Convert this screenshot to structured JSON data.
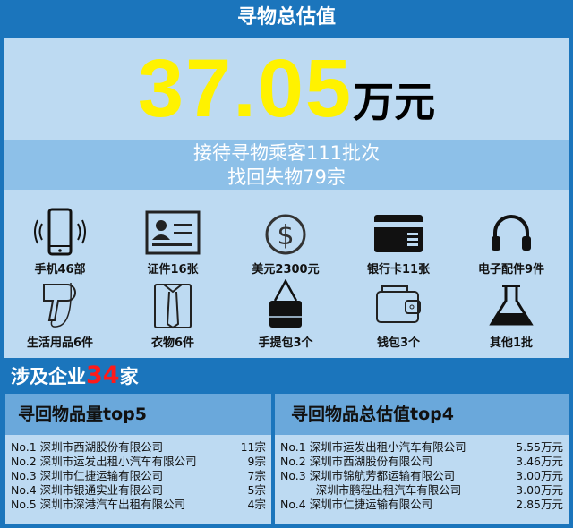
{
  "header": {
    "title": "寻物总估值"
  },
  "total": {
    "value": "37.05",
    "unit": "万元"
  },
  "summary": {
    "line1": "接待寻物乘客111批次",
    "line2": "找回失物79宗"
  },
  "items": [
    {
      "icon": "phone-icon",
      "label": "手机46部"
    },
    {
      "icon": "id-card-icon",
      "label": "证件16张"
    },
    {
      "icon": "dollar-icon",
      "label": "美元2300元"
    },
    {
      "icon": "bank-card-icon",
      "label": "银行卡11张"
    },
    {
      "icon": "headphones-icon",
      "label": "电子配件9件"
    },
    {
      "icon": "hair-dryer-icon",
      "label": "生活用品6件"
    },
    {
      "icon": "shirt-icon",
      "label": "衣物6件"
    },
    {
      "icon": "handbag-icon",
      "label": "手提包3个"
    },
    {
      "icon": "wallet-icon",
      "label": "钱包3个"
    },
    {
      "icon": "flask-icon",
      "label": "其他1批"
    }
  ],
  "enterprises": {
    "prefix": "涉及企业",
    "count": "34",
    "suffix": "家"
  },
  "top_count": {
    "title": "寻回物品量top5",
    "rows": [
      {
        "name": "No.1 深圳市西湖股份有限公司",
        "value": "11宗"
      },
      {
        "name": "No.2 深圳市运发出租小汽车有限公司",
        "value": "9宗"
      },
      {
        "name": "No.3 深圳市仁捷运输有限公司",
        "value": "7宗"
      },
      {
        "name": "No.4 深圳市银通实业有限公司",
        "value": "5宗"
      },
      {
        "name": "No.5 深圳市深港汽车出租有限公司",
        "value": "4宗"
      }
    ]
  },
  "top_value": {
    "title": "寻回物品总估值top4",
    "rows": [
      {
        "name": "No.1 深圳市运发出租小汽车有限公司",
        "value": "5.55万元"
      },
      {
        "name": "No.2 深圳市西湖股份有限公司",
        "value": "3.46万元"
      },
      {
        "name": "No.3 深圳市锦航芳都运输有限公司",
        "value": "3.00万元"
      },
      {
        "name": "          深圳市鹏程出租汽车有限公司",
        "value": "3.00万元"
      },
      {
        "name": "No.4 深圳市仁捷运输有限公司",
        "value": "2.85万元"
      }
    ]
  },
  "colors": {
    "primary": "#1b75bc",
    "panel": "#bddaf2",
    "band": "#8dc0e8",
    "highlight": "#fff200",
    "red": "#ff1a1a"
  }
}
